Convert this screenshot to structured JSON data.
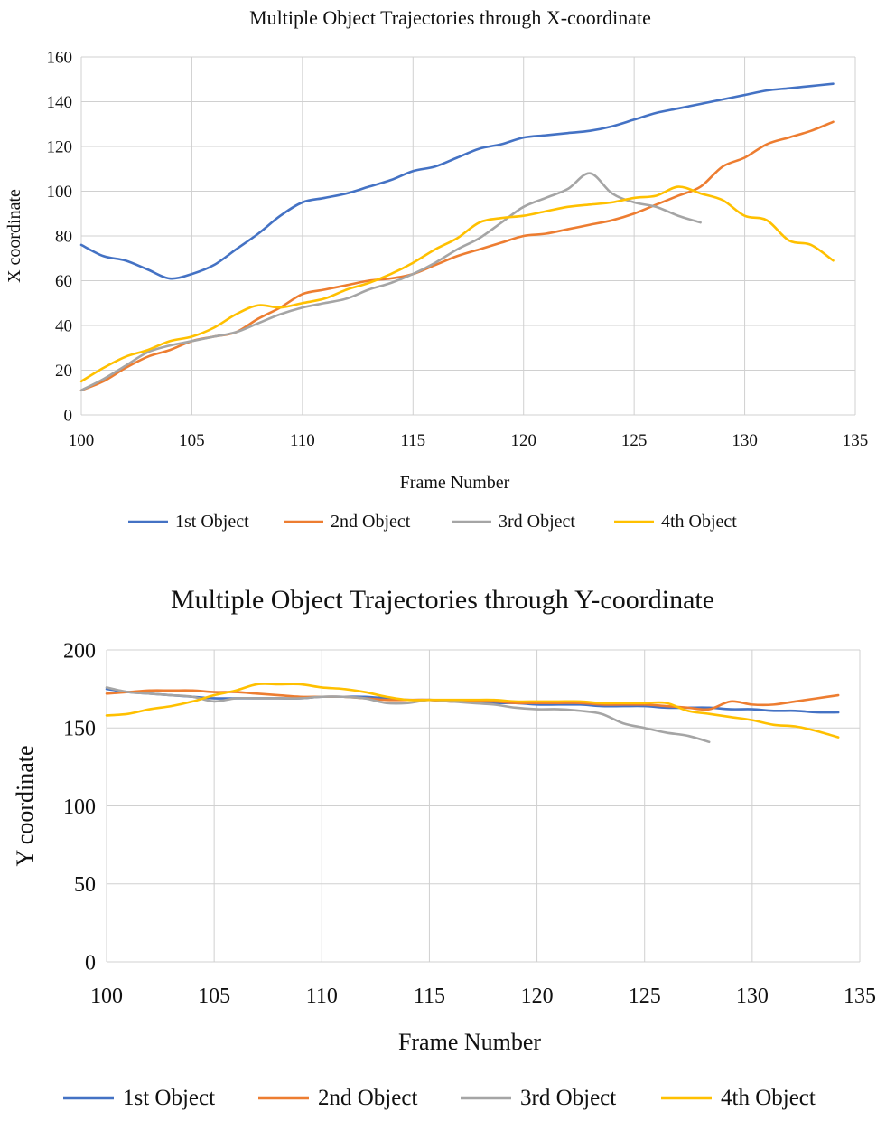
{
  "chart_data": [
    {
      "type": "line",
      "title": "Multiple Object Trajectories through X-coordinate",
      "xlabel": "Frame Number",
      "ylabel": "X coordinate",
      "xlim": [
        100,
        135
      ],
      "ylim": [
        0,
        160
      ],
      "x_ticks": [
        100,
        105,
        110,
        115,
        120,
        125,
        130,
        135
      ],
      "y_ticks": [
        0,
        20,
        40,
        60,
        80,
        100,
        120,
        140,
        160
      ],
      "grid": "vertical and horizontal",
      "legend_position": "bottom",
      "series": [
        {
          "name": "1st Object",
          "color": "#4472C4",
          "x": [
            100,
            101,
            102,
            103,
            104,
            105,
            106,
            107,
            108,
            109,
            110,
            111,
            112,
            113,
            114,
            115,
            116,
            117,
            118,
            119,
            120,
            121,
            122,
            123,
            124,
            125,
            126,
            127,
            128,
            129,
            130,
            131,
            132,
            133,
            134
          ],
          "values": [
            76,
            71,
            69,
            65,
            61,
            63,
            67,
            74,
            81,
            89,
            95,
            97,
            99,
            102,
            105,
            109,
            111,
            115,
            119,
            121,
            124,
            125,
            126,
            127,
            129,
            132,
            135,
            137,
            139,
            141,
            143,
            145,
            146,
            147,
            148
          ]
        },
        {
          "name": "2nd Object",
          "color": "#ED7D31",
          "x": [
            100,
            101,
            102,
            103,
            104,
            105,
            106,
            107,
            108,
            109,
            110,
            111,
            112,
            113,
            114,
            115,
            116,
            117,
            118,
            119,
            120,
            121,
            122,
            123,
            124,
            125,
            126,
            127,
            128,
            129,
            130,
            131,
            132,
            133,
            134
          ],
          "values": [
            11,
            15,
            21,
            26,
            29,
            33,
            35,
            37,
            43,
            48,
            54,
            56,
            58,
            60,
            61,
            63,
            67,
            71,
            74,
            77,
            80,
            81,
            83,
            85,
            87,
            90,
            94,
            98,
            102,
            111,
            115,
            121,
            124,
            127,
            131
          ]
        },
        {
          "name": "3rd Object",
          "color": "#A5A5A5",
          "x": [
            100,
            101,
            102,
            103,
            104,
            105,
            106,
            107,
            108,
            109,
            110,
            111,
            112,
            113,
            114,
            115,
            116,
            117,
            118,
            119,
            120,
            121,
            122,
            123,
            124,
            125,
            126,
            127,
            128
          ],
          "values": [
            11,
            16,
            22,
            28,
            31,
            33,
            35,
            37,
            41,
            45,
            48,
            50,
            52,
            56,
            59,
            63,
            68,
            74,
            79,
            86,
            93,
            97,
            101,
            108,
            99,
            95,
            93,
            89,
            86
          ]
        },
        {
          "name": "4th Object",
          "color": "#FFC000",
          "x": [
            100,
            101,
            102,
            103,
            104,
            105,
            106,
            107,
            108,
            109,
            110,
            111,
            112,
            113,
            114,
            115,
            116,
            117,
            118,
            119,
            120,
            121,
            122,
            123,
            124,
            125,
            126,
            127,
            128,
            129,
            130,
            131,
            132,
            133,
            134
          ],
          "values": [
            15,
            21,
            26,
            29,
            33,
            35,
            39,
            45,
            49,
            48,
            50,
            52,
            56,
            59,
            63,
            68,
            74,
            79,
            86,
            88,
            89,
            91,
            93,
            94,
            95,
            97,
            98,
            102,
            99,
            96,
            89,
            87,
            78,
            76,
            69
          ]
        }
      ]
    },
    {
      "type": "line",
      "title": "Multiple Object Trajectories through Y-coordinate",
      "xlabel": "Frame Number",
      "ylabel": "Y coordinate",
      "xlim": [
        100,
        135
      ],
      "ylim": [
        0,
        200
      ],
      "x_ticks": [
        100,
        105,
        110,
        115,
        120,
        125,
        130,
        135
      ],
      "y_ticks": [
        0,
        50,
        100,
        150,
        200
      ],
      "grid": "vertical and horizontal",
      "legend_position": "bottom",
      "series": [
        {
          "name": "1st Object",
          "color": "#4472C4",
          "x": [
            100,
            101,
            102,
            103,
            104,
            105,
            106,
            107,
            108,
            109,
            110,
            111,
            112,
            113,
            114,
            115,
            116,
            117,
            118,
            119,
            120,
            121,
            122,
            123,
            124,
            125,
            126,
            127,
            128,
            129,
            130,
            131,
            132,
            133,
            134
          ],
          "values": [
            175,
            173,
            172,
            171,
            170,
            169,
            169,
            169,
            169,
            169,
            170,
            170,
            170,
            169,
            168,
            168,
            167,
            167,
            166,
            166,
            165,
            165,
            165,
            164,
            164,
            164,
            163,
            163,
            163,
            162,
            162,
            161,
            161,
            160,
            160
          ]
        },
        {
          "name": "2nd Object",
          "color": "#ED7D31",
          "x": [
            100,
            101,
            102,
            103,
            104,
            105,
            106,
            107,
            108,
            109,
            110,
            111,
            112,
            113,
            114,
            115,
            116,
            117,
            118,
            119,
            120,
            121,
            122,
            123,
            124,
            125,
            126,
            127,
            128,
            129,
            130,
            131,
            132,
            133,
            134
          ],
          "values": [
            172,
            173,
            174,
            174,
            174,
            173,
            173,
            172,
            171,
            170,
            170,
            170,
            169,
            168,
            168,
            168,
            167,
            167,
            167,
            166,
            166,
            166,
            166,
            165,
            165,
            165,
            164,
            163,
            162,
            167,
            165,
            165,
            167,
            169,
            171
          ]
        },
        {
          "name": "3rd Object",
          "color": "#A5A5A5",
          "x": [
            100,
            101,
            102,
            103,
            104,
            105,
            106,
            107,
            108,
            109,
            110,
            111,
            112,
            113,
            114,
            115,
            116,
            117,
            118,
            119,
            120,
            121,
            122,
            123,
            124,
            125,
            126,
            127,
            128
          ],
          "values": [
            176,
            173,
            172,
            171,
            170,
            167,
            169,
            169,
            169,
            169,
            170,
            170,
            169,
            166,
            166,
            168,
            167,
            166,
            165,
            163,
            162,
            162,
            161,
            159,
            153,
            150,
            147,
            145,
            141
          ]
        },
        {
          "name": "4th Object",
          "color": "#FFC000",
          "x": [
            100,
            101,
            102,
            103,
            104,
            105,
            106,
            107,
            108,
            109,
            110,
            111,
            112,
            113,
            114,
            115,
            116,
            117,
            118,
            119,
            120,
            121,
            122,
            123,
            124,
            125,
            126,
            127,
            128,
            129,
            130,
            131,
            132,
            133,
            134
          ],
          "values": [
            158,
            159,
            162,
            164,
            167,
            171,
            174,
            178,
            178,
            178,
            176,
            175,
            173,
            170,
            168,
            168,
            168,
            168,
            168,
            167,
            167,
            167,
            167,
            166,
            166,
            166,
            166,
            161,
            159,
            157,
            155,
            152,
            151,
            148,
            144
          ]
        }
      ]
    }
  ]
}
